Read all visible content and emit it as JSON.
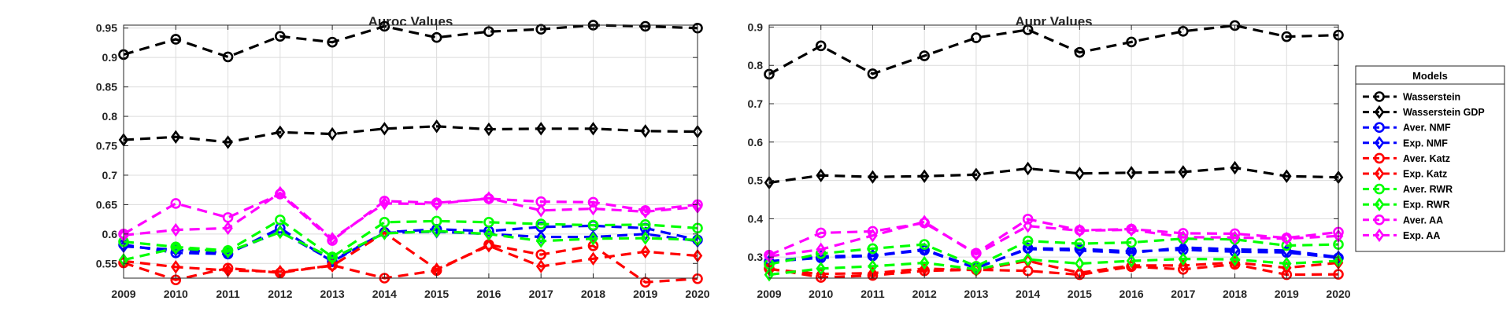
{
  "chart_data": [
    {
      "type": "line",
      "title": "Auroc Values",
      "xlabel": "",
      "ylabel": "",
      "x": [
        2009,
        2010,
        2011,
        2012,
        2013,
        2014,
        2015,
        2016,
        2017,
        2018,
        2019,
        2020
      ],
      "xlim": [
        2009,
        2020
      ],
      "ylim": [
        0.525,
        0.955
      ],
      "yticks": [
        0.55,
        0.6,
        0.65,
        0.7,
        0.75,
        0.8,
        0.85,
        0.9,
        0.95
      ],
      "ytick_labels": [
        "0.55",
        "0.6",
        "0.65",
        "0.7",
        "0.75",
        "0.8",
        "0.85",
        "0.9",
        "0.95"
      ],
      "grid": true,
      "series": [
        {
          "name": "Wasserstein",
          "color": "#000000",
          "marker": "circle",
          "values": [
            0.905,
            0.931,
            0.901,
            0.936,
            0.926,
            0.953,
            0.934,
            0.944,
            0.948,
            0.955,
            0.953,
            0.95
          ]
        },
        {
          "name": "Wasserstein GDP",
          "color": "#000000",
          "marker": "diamond",
          "values": [
            0.76,
            0.765,
            0.756,
            0.773,
            0.77,
            0.779,
            0.783,
            0.778,
            0.779,
            0.779,
            0.775,
            0.774
          ]
        },
        {
          "name": "Aver. NMF",
          "color": "#0000ff",
          "marker": "circle",
          "values": [
            0.582,
            0.568,
            0.566,
            0.61,
            0.553,
            0.603,
            0.608,
            0.605,
            0.612,
            0.614,
            0.61,
            0.59
          ]
        },
        {
          "name": "Exp. NMF",
          "color": "#0000ff",
          "marker": "diamond",
          "values": [
            0.579,
            0.573,
            0.568,
            0.604,
            0.555,
            0.602,
            0.604,
            0.6,
            0.595,
            0.595,
            0.6,
            0.588
          ]
        },
        {
          "name": "Aver. Katz",
          "color": "#ff0000",
          "marker": "circle",
          "values": [
            0.551,
            0.522,
            0.542,
            0.534,
            0.547,
            0.525,
            0.538,
            0.582,
            0.565,
            0.58,
            0.518,
            0.524
          ]
        },
        {
          "name": "Exp. Katz",
          "color": "#ff0000",
          "marker": "diamond",
          "values": [
            0.554,
            0.544,
            0.538,
            0.536,
            0.546,
            0.602,
            0.54,
            0.58,
            0.545,
            0.558,
            0.57,
            0.563
          ]
        },
        {
          "name": "Aver. RWR",
          "color": "#00ff00",
          "marker": "circle",
          "values": [
            0.587,
            0.578,
            0.572,
            0.624,
            0.561,
            0.62,
            0.622,
            0.62,
            0.617,
            0.615,
            0.616,
            0.61
          ]
        },
        {
          "name": "Exp. RWR",
          "color": "#00ff00",
          "marker": "diamond",
          "values": [
            0.556,
            0.576,
            0.57,
            0.603,
            0.559,
            0.601,
            0.605,
            0.6,
            0.588,
            0.592,
            0.593,
            0.59
          ]
        },
        {
          "name": "Aver. AA",
          "color": "#ff00ff",
          "marker": "circle",
          "values": [
            0.6,
            0.652,
            0.628,
            0.668,
            0.589,
            0.656,
            0.653,
            0.66,
            0.655,
            0.654,
            0.64,
            0.65
          ]
        },
        {
          "name": "Exp. AA",
          "color": "#ff00ff",
          "marker": "diamond",
          "values": [
            0.598,
            0.607,
            0.61,
            0.67,
            0.592,
            0.652,
            0.651,
            0.661,
            0.64,
            0.643,
            0.638,
            0.646
          ]
        }
      ]
    },
    {
      "type": "line",
      "title": "Aupr Values",
      "xlabel": "",
      "ylabel": "",
      "x": [
        2009,
        2010,
        2011,
        2012,
        2013,
        2014,
        2015,
        2016,
        2017,
        2018,
        2019,
        2020
      ],
      "xlim": [
        2009,
        2020
      ],
      "ylim": [
        0.245,
        0.905
      ],
      "yticks": [
        0.3,
        0.4,
        0.5,
        0.6,
        0.7,
        0.8,
        0.9
      ],
      "ytick_labels": [
        "0.3",
        "0.4",
        "0.5",
        "0.6",
        "0.7",
        "0.8",
        "0.9"
      ],
      "grid": true,
      "series": [
        {
          "name": "Wasserstein",
          "color": "#000000",
          "marker": "circle",
          "values": [
            0.777,
            0.851,
            0.778,
            0.825,
            0.872,
            0.893,
            0.834,
            0.861,
            0.889,
            0.904,
            0.875,
            0.879
          ]
        },
        {
          "name": "Wasserstein GDP",
          "color": "#000000",
          "marker": "diamond",
          "values": [
            0.494,
            0.513,
            0.509,
            0.511,
            0.515,
            0.531,
            0.518,
            0.52,
            0.522,
            0.533,
            0.511,
            0.508
          ]
        },
        {
          "name": "Aver. NMF",
          "color": "#0000ff",
          "marker": "circle",
          "values": [
            0.288,
            0.298,
            0.303,
            0.318,
            0.271,
            0.323,
            0.321,
            0.315,
            0.319,
            0.314,
            0.312,
            0.298
          ]
        },
        {
          "name": "Exp. NMF",
          "color": "#0000ff",
          "marker": "diamond",
          "values": [
            0.289,
            0.302,
            0.304,
            0.32,
            0.272,
            0.321,
            0.317,
            0.311,
            0.325,
            0.32,
            0.317,
            0.3
          ]
        },
        {
          "name": "Aver. Katz",
          "color": "#ff0000",
          "marker": "circle",
          "values": [
            0.27,
            0.247,
            0.252,
            0.264,
            0.267,
            0.264,
            0.254,
            0.275,
            0.268,
            0.281,
            0.254,
            0.255
          ]
        },
        {
          "name": "Exp. Katz",
          "color": "#ff0000",
          "marker": "diamond",
          "values": [
            0.268,
            0.256,
            0.258,
            0.27,
            0.266,
            0.29,
            0.259,
            0.278,
            0.278,
            0.286,
            0.272,
            0.285
          ]
        },
        {
          "name": "Aver. RWR",
          "color": "#00ff00",
          "marker": "circle",
          "values": [
            0.281,
            0.309,
            0.322,
            0.333,
            0.276,
            0.342,
            0.335,
            0.338,
            0.348,
            0.346,
            0.33,
            0.333
          ]
        },
        {
          "name": "Exp. RWR",
          "color": "#00ff00",
          "marker": "diamond",
          "values": [
            0.254,
            0.27,
            0.276,
            0.285,
            0.268,
            0.294,
            0.283,
            0.29,
            0.295,
            0.294,
            0.283,
            0.29
          ]
        },
        {
          "name": "Aver. AA",
          "color": "#ff00ff",
          "marker": "circle",
          "values": [
            0.305,
            0.363,
            0.367,
            0.389,
            0.31,
            0.399,
            0.37,
            0.373,
            0.362,
            0.361,
            0.35,
            0.365
          ]
        },
        {
          "name": "Exp. AA",
          "color": "#ff00ff",
          "marker": "diamond",
          "values": [
            0.302,
            0.32,
            0.356,
            0.392,
            0.307,
            0.381,
            0.369,
            0.371,
            0.352,
            0.351,
            0.348,
            0.355
          ]
        }
      ]
    }
  ],
  "legend": {
    "title": "Models",
    "placement": "right",
    "items": [
      "Wasserstein",
      "Wasserstein GDP",
      "Aver. NMF",
      "Exp. NMF",
      "Aver. Katz",
      "Exp. Katz",
      "Aver. RWR",
      "Exp. RWR",
      "Aver. AA",
      "Exp. AA"
    ]
  }
}
